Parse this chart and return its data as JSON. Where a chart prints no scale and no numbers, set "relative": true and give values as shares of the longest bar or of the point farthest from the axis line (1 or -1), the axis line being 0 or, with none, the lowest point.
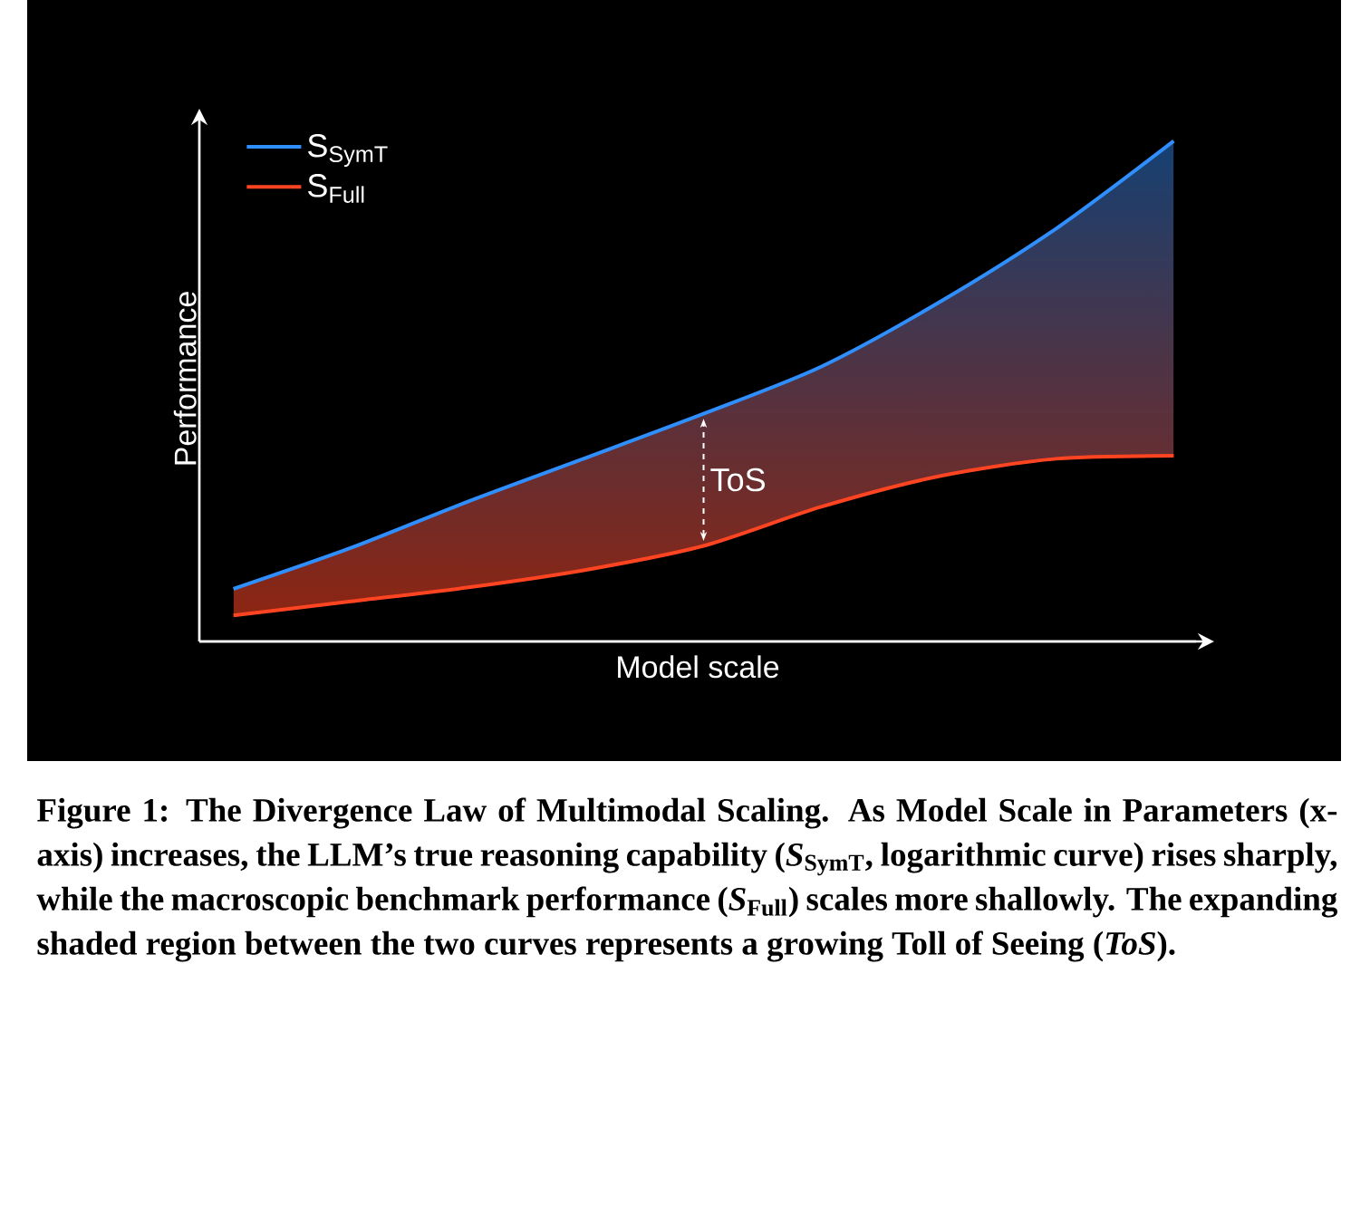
{
  "chart_data": {
    "type": "line",
    "relative": true,
    "xlabel": "Model scale",
    "ylabel": "Performance",
    "categories": [
      null,
      null,
      null,
      null,
      null,
      null,
      null,
      null,
      null
    ],
    "series": [
      {
        "name": "S$_{SymT}$",
        "color": "#2f8fff",
        "values": [
          0.105,
          0.187,
          0.28,
          0.367,
          0.455,
          0.549,
          0.677,
          0.825,
          1
        ]
      },
      {
        "name": "S$_{Full}$",
        "color": "#ff4422",
        "values": [
          0.052,
          0.08,
          0.108,
          0.143,
          0.191,
          0.269,
          0.33,
          0.365,
          0.371
        ]
      }
    ],
    "legend": "top left",
    "annotations": [
      "ToS",
      "Figure 1: The Divergence Law of Multimodal Scaling. As Model Scale in Parameters (x-axis) increases, the LLM’s true reasoning capability (*S*$_{SymT}$, logarithmic curve) rises sharply, while the macroscopic benchmark performance (*S*$_{Full}$) scales more shallowly. The expanding shaded region between the two curves represents a growing Toll of Seeing (*ToS*)."
    ]
  }
}
